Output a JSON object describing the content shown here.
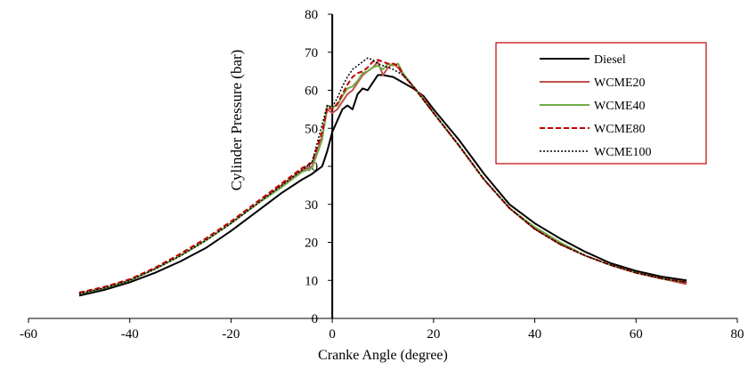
{
  "chart_data": {
    "type": "line",
    "title": "",
    "xlabel": "Cranke Angle (degree)",
    "ylabel": "Cylinder Pressure (bar)",
    "xlim": [
      -60,
      80
    ],
    "ylim": [
      0,
      80
    ],
    "xticks": [
      "-60",
      "-40",
      "-20",
      "0",
      "20",
      "40",
      "60",
      "80"
    ],
    "yticks": [
      "0",
      "10",
      "20",
      "30",
      "40",
      "50",
      "60",
      "70",
      "80"
    ],
    "grid": false,
    "legend_position": "top-right",
    "series": [
      {
        "name": "Diesel",
        "color": "#000000",
        "dash": "solid",
        "x": [
          -50,
          -45,
          -40,
          -35,
          -30,
          -25,
          -20,
          -15,
          -10,
          -6,
          -4,
          -2,
          -1,
          0,
          1,
          2,
          3,
          4,
          5,
          6,
          7,
          8,
          9,
          10,
          12,
          14,
          16,
          18,
          20,
          25,
          30,
          35,
          40,
          45,
          50,
          55,
          60,
          65,
          70
        ],
        "y": [
          6.0,
          7.5,
          9.5,
          12.0,
          15.0,
          18.5,
          23.0,
          28.0,
          33.0,
          36.5,
          38.0,
          40.0,
          44.0,
          49.0,
          52.0,
          55.0,
          56.0,
          55.0,
          59.0,
          60.5,
          60.0,
          62.0,
          64.0,
          64.0,
          63.5,
          62.0,
          60.5,
          58.5,
          55.0,
          47.0,
          38.0,
          30.0,
          25.0,
          21.0,
          17.5,
          14.5,
          12.5,
          11.0,
          10.0
        ]
      },
      {
        "name": "WCME20",
        "color": "#c0504d",
        "dash": "solid",
        "x": [
          -50,
          -45,
          -40,
          -35,
          -30,
          -25,
          -20,
          -15,
          -10,
          -6,
          -4,
          -2,
          -1,
          0,
          1,
          2,
          3,
          4,
          5,
          6,
          7,
          8,
          9,
          10,
          11,
          12,
          13,
          14,
          16,
          18,
          20,
          25,
          30,
          35,
          40,
          45,
          50,
          55,
          60,
          65,
          70
        ],
        "y": [
          6.5,
          8.0,
          10.0,
          13.0,
          16.5,
          20.5,
          25.0,
          30.0,
          35.0,
          39.0,
          40.0,
          48.0,
          55.0,
          54.0,
          55.0,
          57.0,
          59.0,
          60.0,
          62.0,
          64.0,
          65.0,
          66.0,
          67.5,
          64.0,
          66.0,
          67.0,
          66.0,
          64.0,
          61.0,
          58.0,
          54.0,
          45.5,
          36.5,
          29.0,
          23.5,
          19.5,
          16.5,
          14.0,
          12.0,
          10.5,
          9.0
        ]
      },
      {
        "name": "WCME40",
        "color": "#70ad47",
        "dash": "solid",
        "x": [
          -50,
          -45,
          -40,
          -35,
          -30,
          -25,
          -20,
          -15,
          -10,
          -6,
          -4,
          -2,
          -1,
          0,
          1,
          2,
          3,
          4,
          5,
          6,
          7,
          8,
          9,
          10,
          11,
          12,
          13,
          14,
          16,
          18,
          20,
          25,
          30,
          35,
          40,
          45,
          50,
          55,
          60,
          65,
          70
        ],
        "y": [
          6.5,
          8.0,
          10.0,
          13.0,
          16.5,
          20.5,
          25.0,
          30.0,
          34.5,
          38.5,
          39.5,
          47.0,
          56.0,
          55.5,
          56.0,
          58.5,
          60.5,
          61.0,
          62.5,
          64.5,
          65.0,
          66.0,
          66.5,
          65.5,
          67.0,
          66.5,
          67.0,
          64.5,
          61.0,
          57.5,
          54.0,
          45.5,
          36.5,
          29.0,
          24.0,
          20.0,
          16.5,
          14.0,
          12.0,
          10.5,
          9.5
        ]
      },
      {
        "name": "WCME80",
        "color": "#c00000",
        "dash": "dashed",
        "x": [
          -50,
          -45,
          -40,
          -35,
          -30,
          -25,
          -20,
          -15,
          -10,
          -6,
          -4,
          -2,
          -1,
          0,
          1,
          2,
          3,
          4,
          5,
          6,
          7,
          8,
          9,
          10,
          11,
          12,
          13,
          14,
          16,
          18,
          20,
          25,
          30,
          35,
          40,
          45,
          50,
          55,
          60,
          65,
          70
        ],
        "y": [
          6.8,
          8.3,
          10.3,
          13.3,
          17.0,
          21.0,
          25.5,
          30.5,
          35.5,
          39.5,
          41.0,
          49.0,
          55.5,
          55.0,
          56.5,
          59.0,
          61.5,
          63.5,
          64.5,
          65.0,
          66.0,
          67.5,
          68.0,
          67.5,
          67.0,
          67.0,
          66.5,
          64.0,
          61.0,
          57.5,
          54.0,
          45.5,
          36.5,
          29.0,
          23.5,
          19.5,
          16.5,
          14.0,
          12.0,
          10.5,
          9.5
        ]
      },
      {
        "name": "WCME100",
        "color": "#000000",
        "dash": "dotted",
        "x": [
          -50,
          -45,
          -40,
          -35,
          -30,
          -25,
          -20,
          -15,
          -10,
          -6,
          -4,
          -2,
          -1,
          0,
          1,
          2,
          3,
          4,
          5,
          6,
          7,
          8,
          9,
          10,
          12,
          14,
          16,
          18,
          20,
          25,
          30,
          35,
          40,
          45,
          50,
          55,
          60,
          65,
          70
        ],
        "y": [
          6.5,
          8.0,
          10.0,
          13.0,
          16.5,
          20.5,
          25.0,
          30.0,
          35.0,
          39.0,
          41.0,
          51.0,
          56.0,
          55.5,
          58.0,
          61.0,
          63.5,
          65.5,
          66.5,
          67.5,
          68.5,
          68.0,
          67.0,
          66.5,
          65.5,
          64.0,
          61.0,
          57.5,
          54.0,
          45.5,
          36.5,
          29.0,
          23.5,
          19.5,
          16.5,
          14.0,
          12.0,
          10.5,
          9.5
        ]
      }
    ]
  }
}
